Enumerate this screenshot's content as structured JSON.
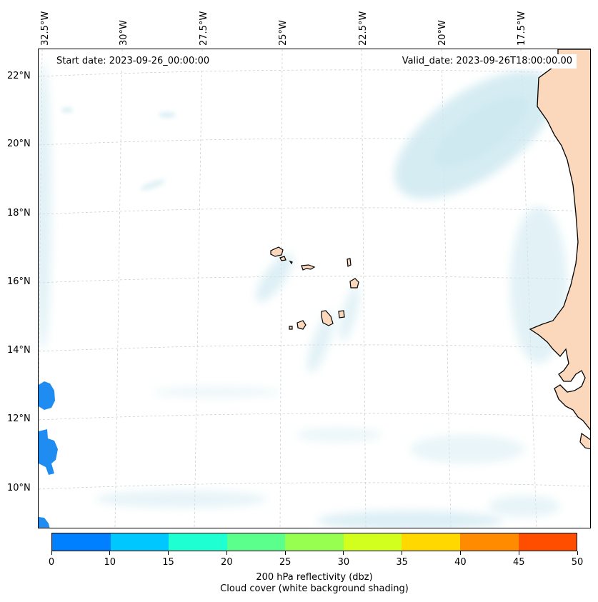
{
  "map": {
    "start_date": "Start date: 2023-09-26_00:00:00",
    "valid_date": "Valid_date: 2023-09-26T18:00:00.00",
    "longitude_labels": [
      "32.5°W",
      "30°W",
      "27.5°W",
      "25°W",
      "22.5°W",
      "20°W",
      "17.5°W"
    ],
    "latitude_labels": [
      "22°N",
      "20°N",
      "18°N",
      "16°N",
      "14°N",
      "12°N",
      "10°N"
    ],
    "colors": {
      "cloud": "#cfe9f1",
      "land": "#fbd7bb",
      "reflectivity_low": "#1e8cf0"
    }
  },
  "colorbar": {
    "colors": [
      "#0080ff",
      "#00c8ff",
      "#1effd2",
      "#5aff8c",
      "#96ff50",
      "#d2ff1e",
      "#ffd800",
      "#ff8c00",
      "#ff4e00"
    ],
    "ticks": [
      "0",
      "10",
      "15",
      "20",
      "25",
      "30",
      "35",
      "40",
      "45",
      "50"
    ],
    "label_line1": "200 hPa reflectivity (dbz)",
    "label_line2": "Cloud cover (white background shading)"
  }
}
